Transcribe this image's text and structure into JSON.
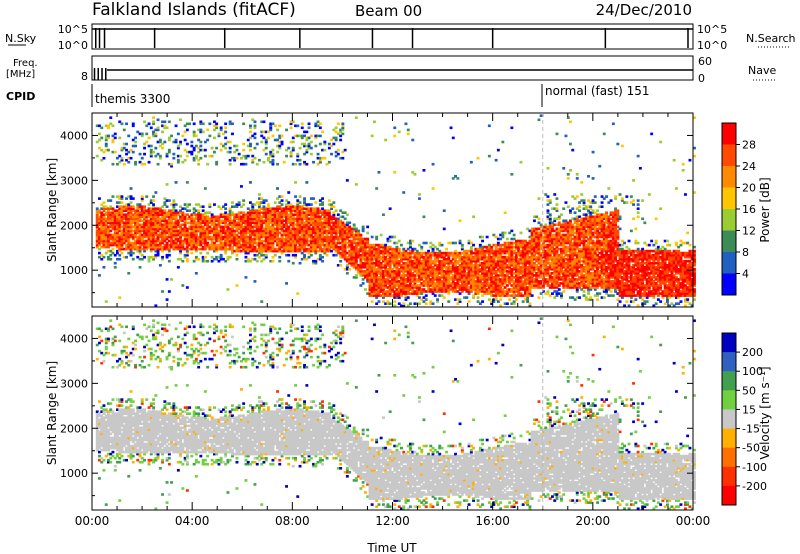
{
  "header": {
    "station": "Falkland Islands (fitACF)",
    "beam": "Beam 00",
    "date": "24/Dec/2010"
  },
  "noise_panel": {
    "left_label": "N.Sky",
    "left_ticks": [
      "10^5",
      "10^0"
    ],
    "right_label": "N.Search",
    "right_ticks": [
      "10^5",
      "10^0"
    ]
  },
  "freq_panel": {
    "left_label_1": "Freq.",
    "left_label_2": "[MHz]",
    "left_tick": "8",
    "right_label": "Nave",
    "right_ticks": [
      "60",
      "0"
    ]
  },
  "cpid": {
    "label": "CPID",
    "segments": [
      {
        "name": "themis 3300",
        "start_hour": 0
      },
      {
        "name": "normal (fast) 151",
        "start_hour": 18
      }
    ]
  },
  "chart_data": [
    {
      "type": "heatmap",
      "panel": "power",
      "xlabel": "Time UT",
      "ylabel": "Slant Range [km]",
      "xlim": [
        0,
        24
      ],
      "ylim": [
        180,
        4500
      ],
      "y_ticks": [
        1000,
        2000,
        3000,
        4000
      ],
      "colorbar": {
        "label": "Power [dB]",
        "ticks": [
          "28",
          "24",
          "20",
          "16",
          "12",
          "8",
          "4"
        ],
        "colors": [
          "#ff0000",
          "#ff4a00",
          "#ff8a00",
          "#ffc600",
          "#9acd32",
          "#3c8c5a",
          "#2060c0",
          "#0000ff"
        ]
      }
    },
    {
      "type": "heatmap",
      "panel": "velocity",
      "xlabel": "Time UT",
      "ylabel": "Slant Range [km]",
      "xlim": [
        0,
        24
      ],
      "ylim": [
        180,
        4500
      ],
      "y_ticks": [
        1000,
        2000,
        3000,
        4000
      ],
      "x_ticks": [
        "00:00",
        "04:00",
        "08:00",
        "12:00",
        "16:00",
        "20:00",
        "00:00"
      ],
      "colorbar": {
        "label": "Velocity [m s⁻¹]",
        "ticks": [
          "200",
          "100",
          "50",
          "15",
          "-15",
          "-50",
          "-100",
          "-200"
        ],
        "colors": [
          "#0000c0",
          "#3060c0",
          "#40a050",
          "#70d040",
          "#c8c8c8",
          "#ffb000",
          "#ff7000",
          "#ff3000",
          "#ff0000"
        ]
      }
    }
  ]
}
